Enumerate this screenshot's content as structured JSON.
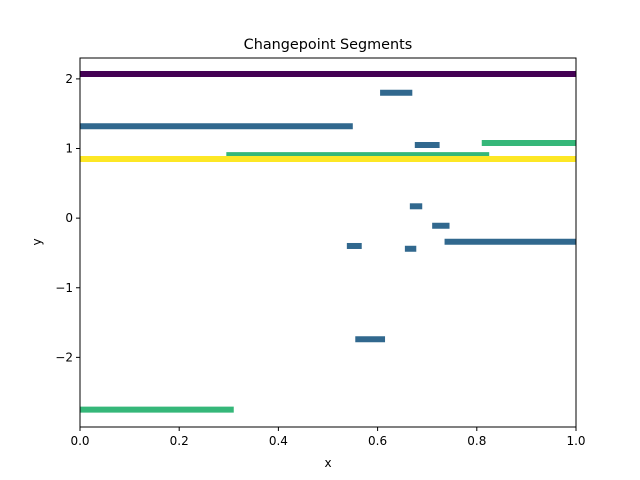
{
  "chart_data": {
    "type": "line",
    "title": "Changepoint Segments",
    "xlabel": "x",
    "ylabel": "y",
    "xlim": [
      0.0,
      1.0
    ],
    "ylim": [
      -3.0,
      2.3
    ],
    "grid": false,
    "xticks": [
      {
        "value": 0.0,
        "label": "0.0"
      },
      {
        "value": 0.2,
        "label": "0.2"
      },
      {
        "value": 0.4,
        "label": "0.4"
      },
      {
        "value": 0.6,
        "label": "0.6"
      },
      {
        "value": 0.8,
        "label": "0.8"
      },
      {
        "value": 1.0,
        "label": "1.0"
      }
    ],
    "yticks": [
      {
        "value": 2,
        "label": "2"
      },
      {
        "value": 1,
        "label": "1"
      },
      {
        "value": 0,
        "label": "0"
      },
      {
        "value": -1,
        "label": "−1"
      },
      {
        "value": -2,
        "label": "−2"
      }
    ],
    "segments": [
      {
        "x0": 0.0,
        "x1": 1.0,
        "y": 2.07,
        "color": "#440154",
        "width": 6
      },
      {
        "x0": 0.605,
        "x1": 0.67,
        "y": 1.8,
        "color": "#31688e",
        "width": 6
      },
      {
        "x0": 0.0,
        "x1": 0.55,
        "y": 1.32,
        "color": "#31688e",
        "width": 6
      },
      {
        "x0": 0.675,
        "x1": 0.725,
        "y": 1.05,
        "color": "#31688e",
        "width": 6
      },
      {
        "x0": 0.81,
        "x1": 1.0,
        "y": 1.08,
        "color": "#35b779",
        "width": 6
      },
      {
        "x0": 0.295,
        "x1": 0.825,
        "y": 0.92,
        "color": "#35b779",
        "width": 4
      },
      {
        "x0": 0.0,
        "x1": 1.0,
        "y": 0.85,
        "color": "#fde725",
        "width": 6
      },
      {
        "x0": 0.665,
        "x1": 0.69,
        "y": 0.17,
        "color": "#31688e",
        "width": 6
      },
      {
        "x0": 0.71,
        "x1": 0.745,
        "y": -0.11,
        "color": "#31688e",
        "width": 6
      },
      {
        "x0": 0.735,
        "x1": 1.0,
        "y": -0.34,
        "color": "#31688e",
        "width": 6
      },
      {
        "x0": 0.538,
        "x1": 0.568,
        "y": -0.4,
        "color": "#31688e",
        "width": 6
      },
      {
        "x0": 0.655,
        "x1": 0.678,
        "y": -0.44,
        "color": "#31688e",
        "width": 6
      },
      {
        "x0": 0.555,
        "x1": 0.615,
        "y": -1.74,
        "color": "#31688e",
        "width": 6
      },
      {
        "x0": 0.0,
        "x1": 0.31,
        "y": -2.75,
        "color": "#35b779",
        "width": 6
      }
    ]
  }
}
